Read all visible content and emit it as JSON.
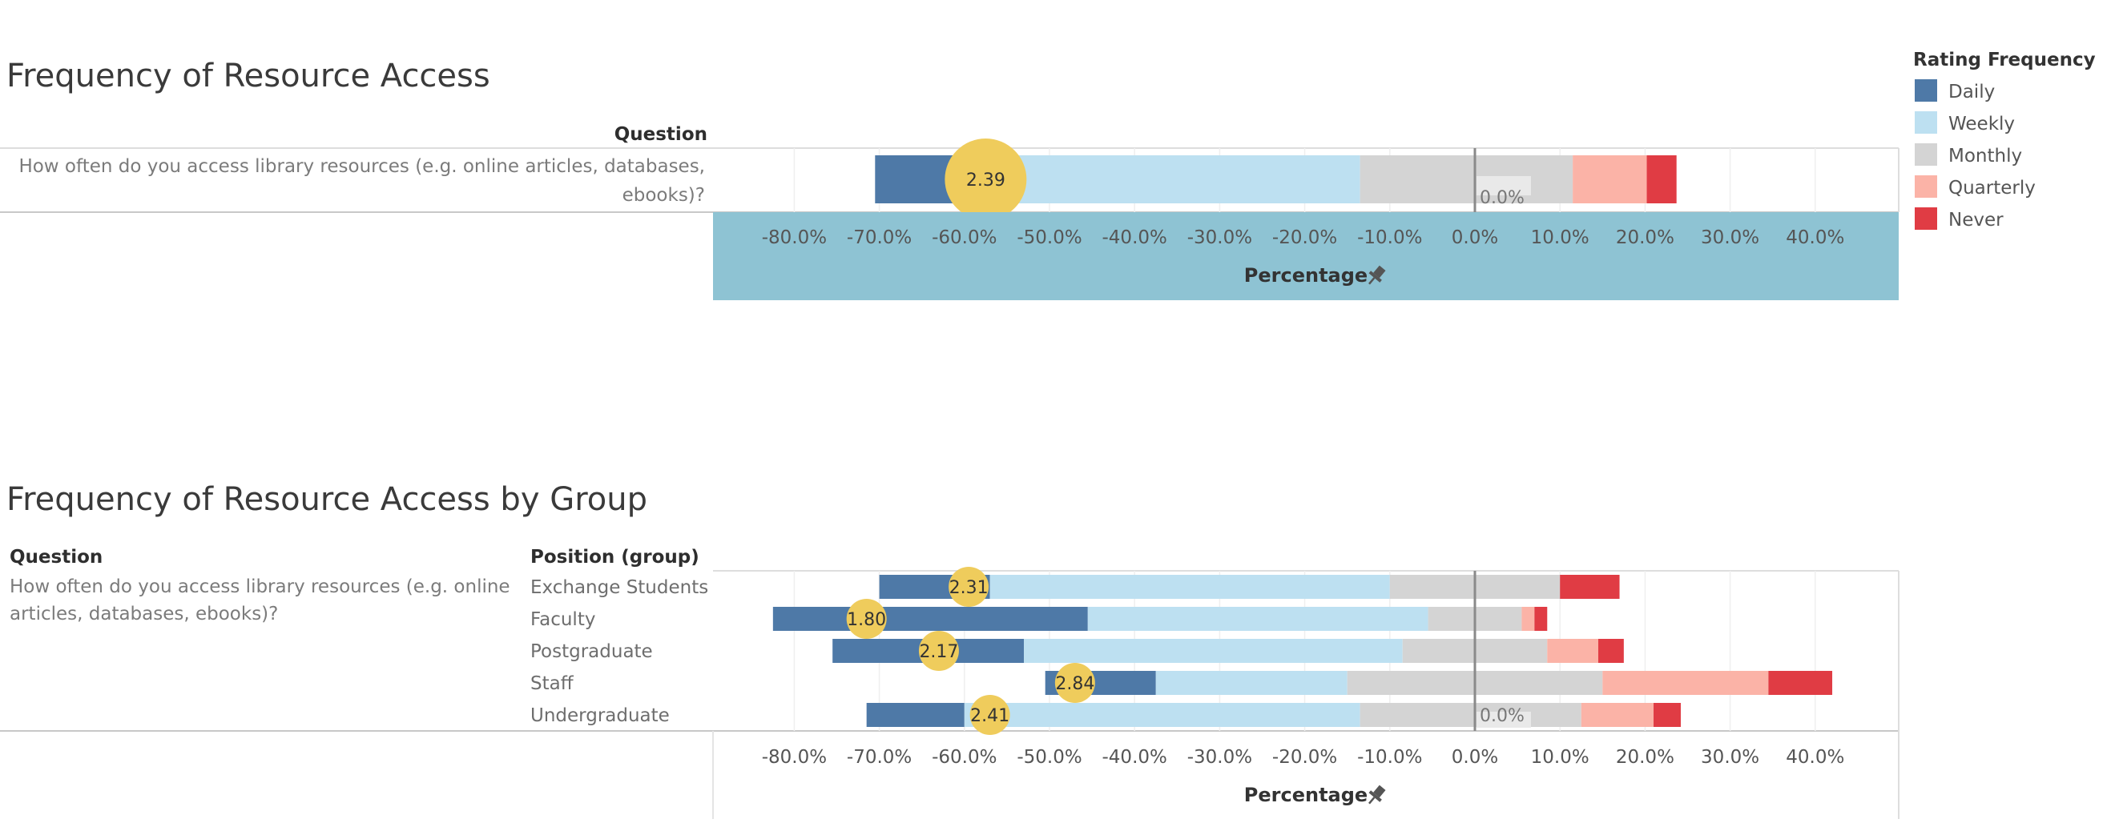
{
  "legend": {
    "title": "Rating Frequency",
    "items": [
      {
        "label": "Daily",
        "color": "#4e79a7"
      },
      {
        "label": "Weekly",
        "color": "#bde0f1"
      },
      {
        "label": "Monthly",
        "color": "#d4d4d4"
      },
      {
        "label": "Quarterly",
        "color": "#fbb3a7"
      },
      {
        "label": "Never",
        "color": "#e03c44"
      }
    ]
  },
  "chart_data": [
    {
      "type": "bar",
      "title": "Frequency of Resource Access",
      "question_header": "Question",
      "question": "How often do you access library resources (e.g. online articles, databases, ebooks)?",
      "question_lines": [
        "How often do you access library resources (e.g. online articles, databases,",
        "ebooks)?"
      ],
      "xlabel": "Percentage",
      "xlim": [
        -90,
        50
      ],
      "ticks": [
        "-80.0%",
        "-70.0%",
        "-60.0%",
        "-50.0%",
        "-40.0%",
        "-30.0%",
        "-20.0%",
        "-10.0%",
        "0.0%",
        "10.0%",
        "20.0%",
        "30.0%",
        "40.0%"
      ],
      "tick_values": [
        -80,
        -70,
        -60,
        -50,
        -40,
        -30,
        -20,
        -10,
        0,
        10,
        20,
        30,
        40
      ],
      "zero_label": "0.0%",
      "rows": [
        {
          "label": "",
          "segments": {
            "Daily": 10,
            "Weekly": 47,
            "Monthly": 25,
            "Quarterly": 8.7,
            "Never": 3.5
          },
          "start": -70.5,
          "average": 2.39,
          "average_label": "2.39",
          "average_x": -57.5
        }
      ]
    },
    {
      "type": "bar",
      "title": "Frequency of Resource Access by Group",
      "question_header": "Question",
      "group_header": "Position (group)",
      "question": "How often do you access library resources (e.g. online articles, databases, ebooks)?",
      "question_lines": [
        "How often do you access library resources (e.g. online",
        "articles, databases, ebooks)?"
      ],
      "xlabel": "Percentage",
      "xlim": [
        -90,
        50
      ],
      "ticks": [
        "-80.0%",
        "-70.0%",
        "-60.0%",
        "-50.0%",
        "-40.0%",
        "-30.0%",
        "-20.0%",
        "-10.0%",
        "0.0%",
        "10.0%",
        "20.0%",
        "30.0%",
        "40.0%"
      ],
      "tick_values": [
        -80,
        -70,
        -60,
        -50,
        -40,
        -30,
        -20,
        -10,
        0,
        10,
        20,
        30,
        40
      ],
      "zero_label": "0.0%",
      "rows": [
        {
          "label": "Exchange Students",
          "segments": {
            "Daily": 13,
            "Weekly": 47,
            "Monthly": 20,
            "Quarterly": 0,
            "Never": 7
          },
          "start": -70,
          "average": 2.31,
          "average_label": "2.31",
          "average_x": -59.5
        },
        {
          "label": "Faculty",
          "segments": {
            "Daily": 37,
            "Weekly": 40,
            "Monthly": 11,
            "Quarterly": 1.5,
            "Never": 1.5
          },
          "start": -82.5,
          "average": 1.8,
          "average_label": "1.80",
          "average_x": -71.5
        },
        {
          "label": "Postgraduate",
          "segments": {
            "Daily": 22.5,
            "Weekly": 44.5,
            "Monthly": 17,
            "Quarterly": 6,
            "Never": 3
          },
          "start": -75.5,
          "average": 2.17,
          "average_label": "2.17",
          "average_x": -63
        },
        {
          "label": "Staff",
          "segments": {
            "Daily": 13,
            "Weekly": 22.5,
            "Monthly": 30,
            "Quarterly": 19.5,
            "Never": 7.5
          },
          "start": -50.5,
          "average": 2.84,
          "average_label": "2.84",
          "average_x": -47
        },
        {
          "label": "Undergraduate",
          "segments": {
            "Daily": 11.5,
            "Weekly": 46.5,
            "Monthly": 26,
            "Quarterly": 8.5,
            "Never": 3.2
          },
          "start": -71.5,
          "average": 2.41,
          "average_label": "2.41",
          "average_x": -57
        }
      ]
    }
  ]
}
